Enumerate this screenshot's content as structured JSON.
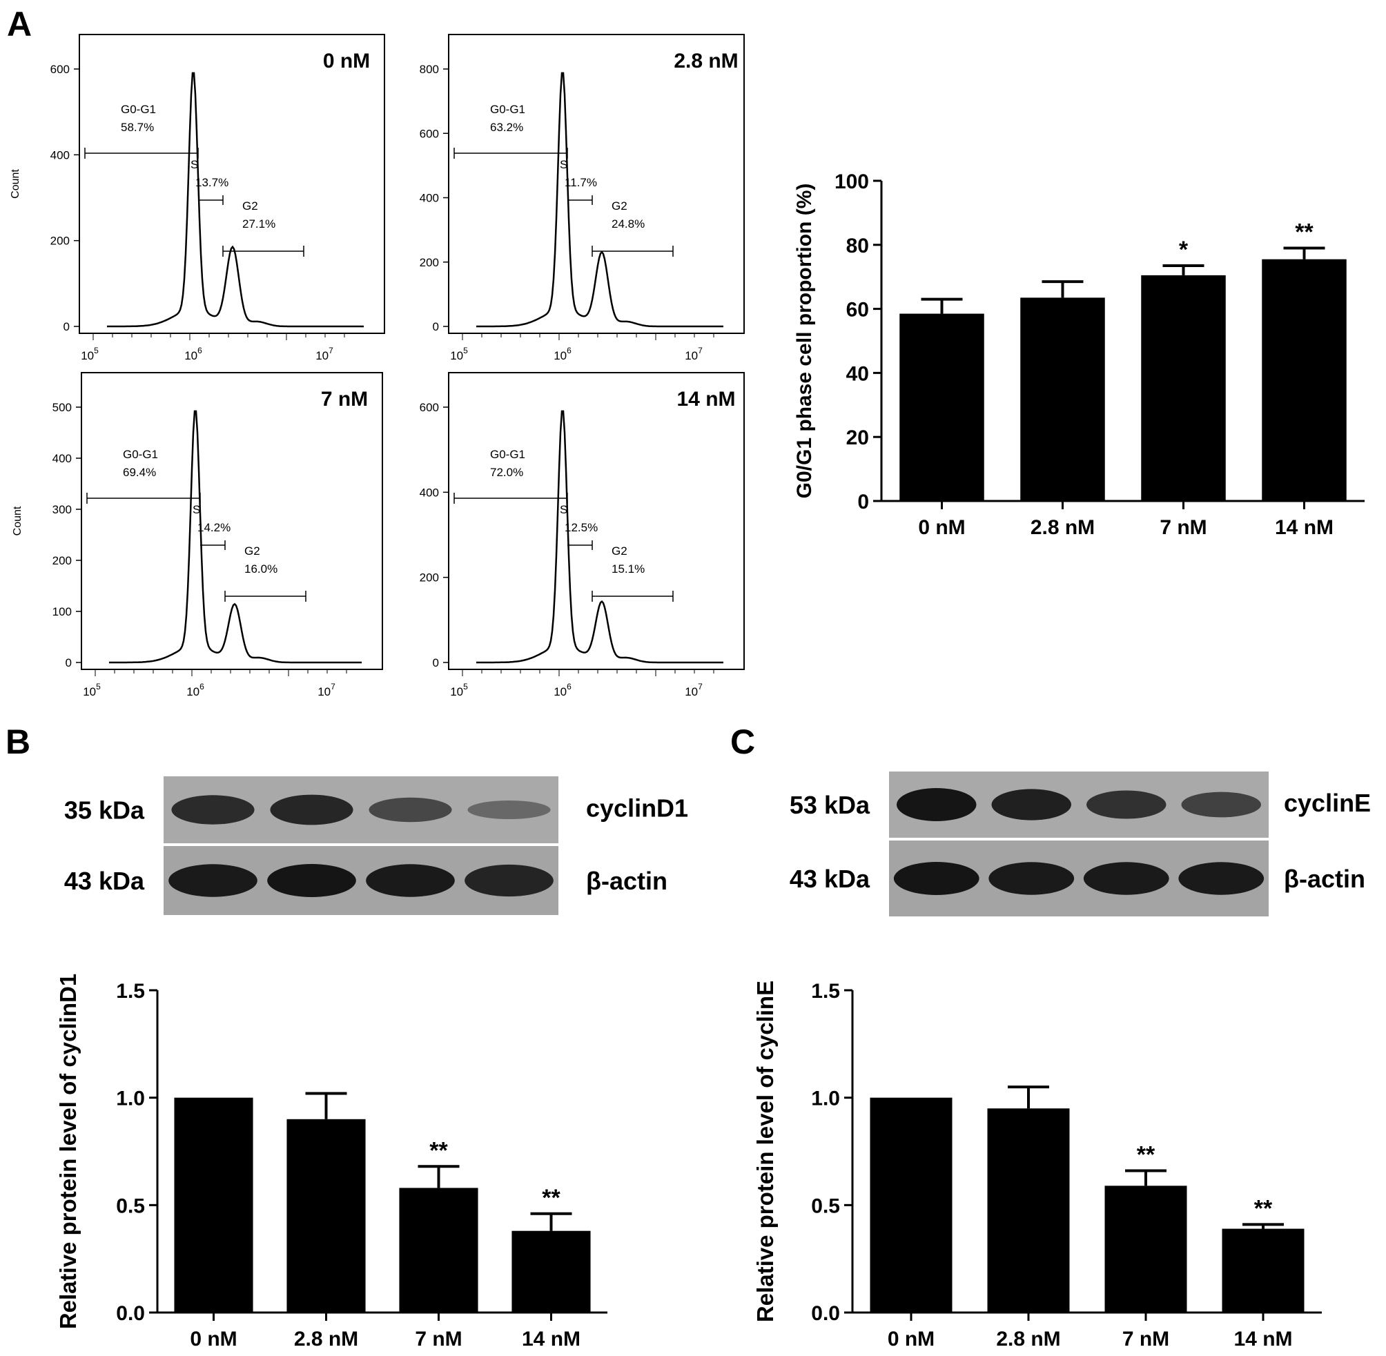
{
  "panel_labels": {
    "a": "A",
    "b": "B",
    "c": "C"
  },
  "flow": {
    "y_axis_label": "Count",
    "x_ticks": [
      {
        "base": "10",
        "exp": "5"
      },
      {
        "base": "10",
        "exp": "6"
      },
      {
        "base": "10",
        "exp": "7"
      }
    ],
    "plots": [
      {
        "title": "0 nM",
        "y_ticks": [
          "600",
          "400",
          "200",
          "0"
        ],
        "show_ylabel": true,
        "g0g1": {
          "name": "G0-G1",
          "pct": "58.7%"
        },
        "s": {
          "name": "S",
          "pct": "13.7%"
        },
        "g2": {
          "name": "G2",
          "pct": "27.1%"
        }
      },
      {
        "title": "2.8 nM",
        "y_ticks": [
          "800",
          "600",
          "400",
          "200",
          "0"
        ],
        "show_ylabel": false,
        "g0g1": {
          "name": "G0-G1",
          "pct": "63.2%"
        },
        "s": {
          "name": "S",
          "pct": "11.7%"
        },
        "g2": {
          "name": "G2",
          "pct": "24.8%"
        }
      },
      {
        "title": "7 nM",
        "y_ticks": [
          "500",
          "400",
          "300",
          "200",
          "100",
          "0"
        ],
        "show_ylabel": true,
        "g0g1": {
          "name": "G0-G1",
          "pct": "69.4%"
        },
        "s": {
          "name": "S",
          "pct": "14.2%"
        },
        "g2": {
          "name": "G2",
          "pct": "16.0%"
        }
      },
      {
        "title": "14 nM",
        "y_ticks": [
          "600",
          "400",
          "200",
          "0"
        ],
        "show_ylabel": false,
        "g0g1": {
          "name": "G0-G1",
          "pct": "72.0%"
        },
        "s": {
          "name": "S",
          "pct": "12.5%"
        },
        "g2": {
          "name": "G2",
          "pct": "15.1%"
        }
      }
    ]
  },
  "blots": {
    "b": {
      "top_kda": "35 kDa",
      "top_protein": "cyclinD1",
      "bottom_kda": "43 kDa",
      "bottom_protein": "β-actin",
      "top_band_strength": [
        0.8,
        0.85,
        0.55,
        0.25
      ],
      "bottom_band_strength": [
        0.95,
        1.0,
        0.95,
        0.85
      ]
    },
    "c": {
      "top_kda": "53 kDa",
      "top_protein": "cyclinE",
      "bottom_kda": "43 kDa",
      "bottom_protein": "β-actin",
      "top_band_strength": [
        1.0,
        0.9,
        0.75,
        0.6
      ],
      "bottom_band_strength": [
        1.0,
        0.95,
        0.95,
        0.95
      ]
    }
  },
  "chart_data": [
    {
      "id": "panel-a-g0g1",
      "type": "bar",
      "categories": [
        "0 nM",
        "2.8 nM",
        "7 nM",
        "14 nM"
      ],
      "values": [
        58.5,
        63.5,
        70.5,
        75.5
      ],
      "errors": [
        4.5,
        5.0,
        3.0,
        3.5
      ],
      "significance": [
        "",
        "",
        "*",
        "**"
      ],
      "ylabel": "G0/G1 phase cell  proportion (%)",
      "ylim": [
        0,
        100
      ],
      "y_ticks": [
        "0",
        "20",
        "40",
        "60",
        "80",
        "100"
      ],
      "y_tick_values": [
        0,
        20,
        40,
        60,
        80,
        100
      ]
    },
    {
      "id": "panel-b-cyclind1",
      "type": "bar",
      "categories": [
        "0 nM",
        "2.8 nM",
        "7 nM",
        "14 nM"
      ],
      "values": [
        1.0,
        0.9,
        0.58,
        0.38
      ],
      "errors": [
        0,
        0.12,
        0.1,
        0.08
      ],
      "significance": [
        "",
        "",
        "**",
        "**"
      ],
      "ylabel": "Relative protein level of cyclinD1",
      "ylim": [
        0,
        1.5
      ],
      "y_ticks": [
        "0.0",
        "0.5",
        "1.0",
        "1.5"
      ],
      "y_tick_values": [
        0,
        0.5,
        1.0,
        1.5
      ]
    },
    {
      "id": "panel-c-cycline",
      "type": "bar",
      "categories": [
        "0 nM",
        "2.8 nM",
        "7 nM",
        "14 nM"
      ],
      "values": [
        1.0,
        0.95,
        0.59,
        0.39
      ],
      "errors": [
        0,
        0.1,
        0.07,
        0.02
      ],
      "significance": [
        "",
        "",
        "**",
        "**"
      ],
      "ylabel": "Relative protein level of cyclinE",
      "ylim": [
        0,
        1.5
      ],
      "y_ticks": [
        "0.0",
        "0.5",
        "1.0",
        "1.5"
      ],
      "y_tick_values": [
        0,
        0.5,
        1.0,
        1.5
      ]
    }
  ]
}
